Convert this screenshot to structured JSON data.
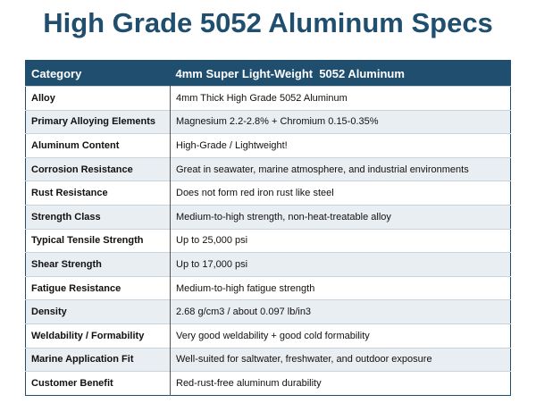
{
  "header": {
    "title": "High Grade 5052 Aluminum Specs"
  },
  "table": {
    "columns": [
      "Category",
      "4mm Super Light-Weight  5052 Aluminum"
    ],
    "rows": [
      [
        "Alloy",
        "4mm Thick High Grade 5052 Aluminum"
      ],
      [
        "Primary Alloying Elements",
        "Magnesium 2.2-2.8% + Chromium 0.15-0.35%"
      ],
      [
        "Aluminum Content",
        "High-Grade / Lightweight!"
      ],
      [
        "Corrosion Resistance",
        "Great in seawater, marine atmosphere, and industrial environments"
      ],
      [
        "Rust Resistance",
        "Does not form red iron rust like steel"
      ],
      [
        "Strength Class",
        "Medium-to-high strength, non-heat-treatable alloy"
      ],
      [
        "Typical Tensile Strength",
        "Up to 25,000 psi"
      ],
      [
        "Shear Strength",
        "Up to 17,000 psi"
      ],
      [
        "Fatigue Resistance",
        "Medium-to-high fatigue strength"
      ],
      [
        "Density",
        "2.68 g/cm3 / about 0.097 lb/in3"
      ],
      [
        "Weldability / Formability",
        "Very good weldability + good cold formability"
      ],
      [
        "Marine Application Fit",
        "Well-suited for saltwater, freshwater, and outdoor exposure"
      ],
      [
        "Customer Benefit",
        "Red-rust-free aluminum durability"
      ]
    ]
  }
}
